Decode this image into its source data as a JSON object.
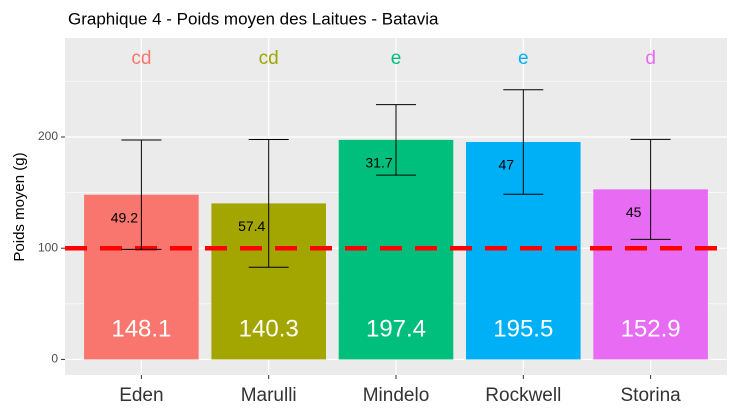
{
  "chart_data": {
    "type": "bar",
    "title": "Graphique 4 - Poids moyen des Laitues - Batavia",
    "y_label": "Poids moyen (g)",
    "categories": [
      "Eden",
      "Marulli",
      "Mindelo",
      "Rockwell",
      "Storina"
    ],
    "values": [
      148.1,
      140.3,
      197.4,
      195.5,
      152.9
    ],
    "errors": [
      49.2,
      57.4,
      31.7,
      47,
      45
    ],
    "group_letters": [
      "cd",
      "cd",
      "e",
      "e",
      "d"
    ],
    "colors": [
      "#F8766D",
      "#A3A500",
      "#00BF7D",
      "#00B0F6",
      "#E76BF3"
    ],
    "reference_line": 100,
    "reference_color": "#ff0000",
    "ylim": [
      -14,
      289
    ],
    "yticks": [
      0,
      100,
      200
    ],
    "minor_yticks": [
      50,
      150,
      250
    ],
    "grid": true
  }
}
